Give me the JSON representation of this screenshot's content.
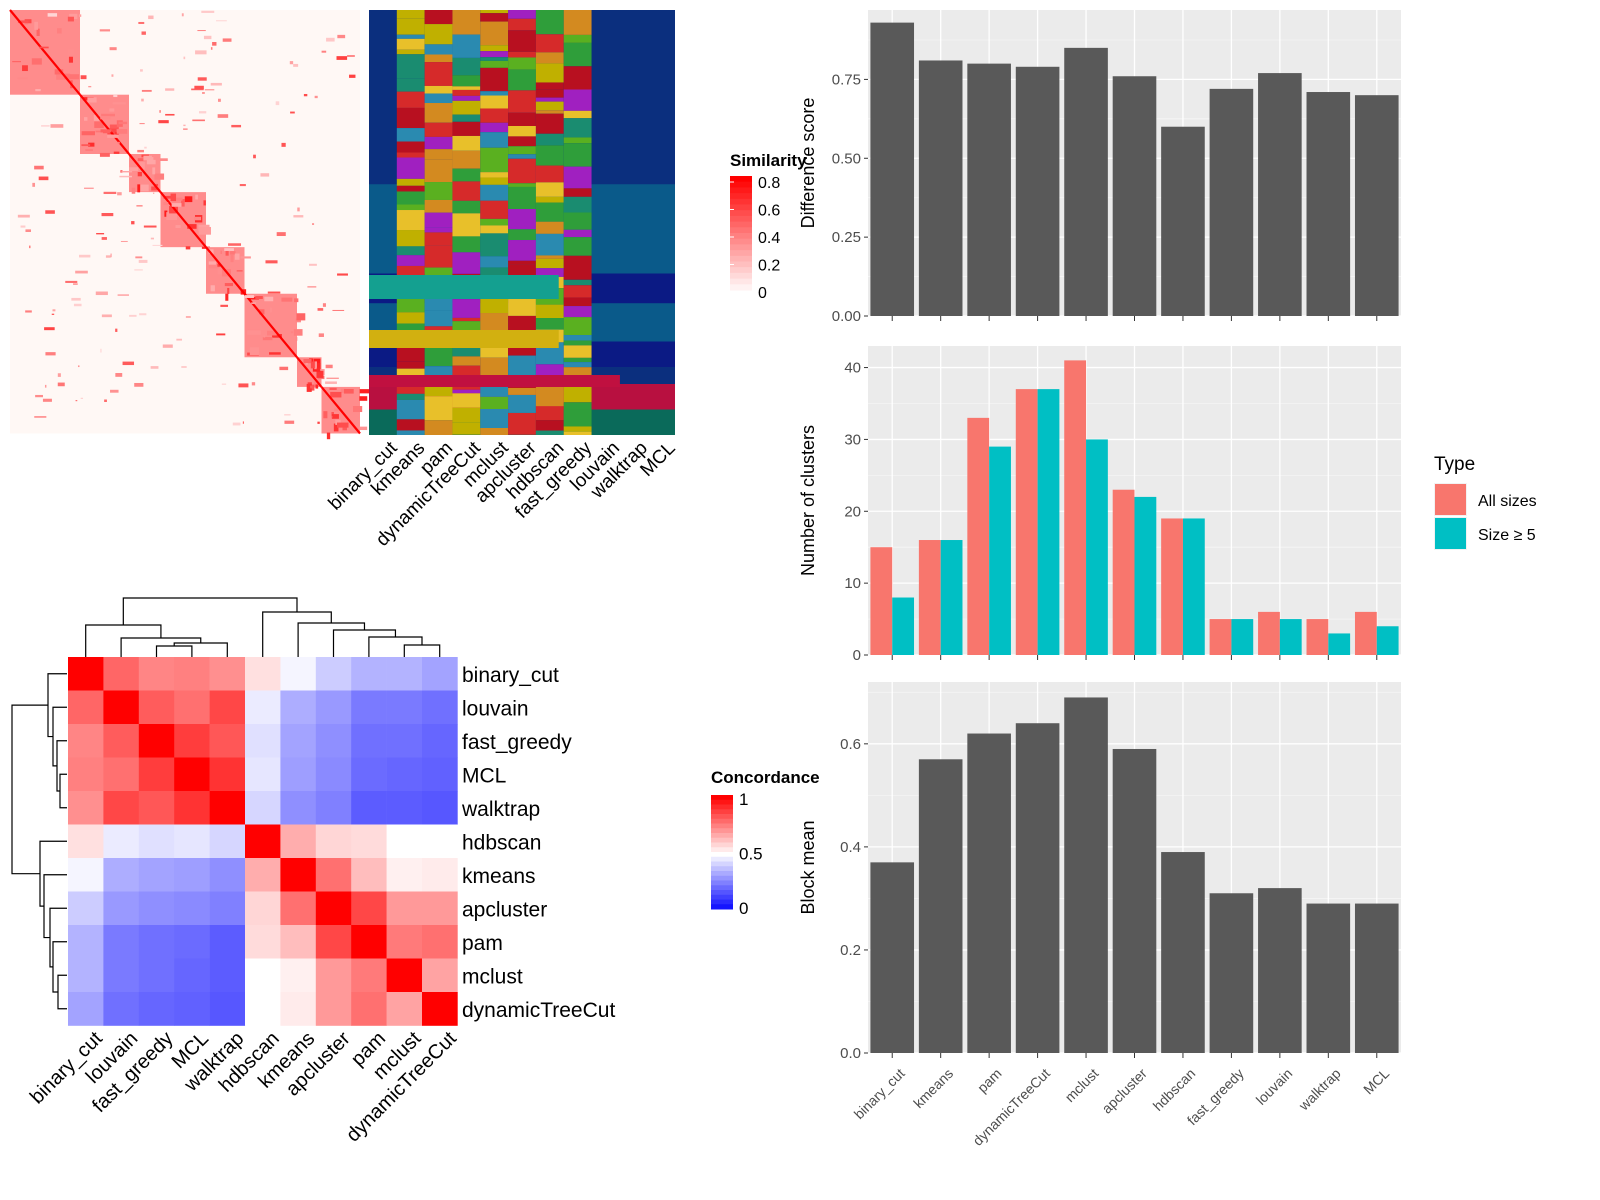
{
  "chart_data": [
    {
      "type": "heatmap",
      "panel": "similarity-heatmap",
      "legend_title": "Similarity",
      "legend_ticks": [
        "0.8",
        "0.6",
        "0.4",
        "0.2",
        "0"
      ],
      "method_columns": [
        "binary_cut",
        "kmeans",
        "pam",
        "dynamicTreeCut",
        "mclust",
        "apcluster",
        "hdbscan",
        "fast_greedy",
        "louvain",
        "walktrap",
        "MCL"
      ],
      "block_proportions": [
        0.2,
        0.14,
        0.09,
        0.13,
        0.11,
        0.15,
        0.07,
        0.11
      ],
      "colors": {
        "high": "#ff0000",
        "low": "#ffffff"
      }
    },
    {
      "type": "heatmap",
      "panel": "concordance-heatmap",
      "legend_title": "Concordance",
      "legend_ticks": [
        "1",
        "0.5",
        "0"
      ],
      "rows": [
        "binary_cut",
        "louvain",
        "fast_greedy",
        "MCL",
        "walktrap",
        "hdbscan",
        "kmeans",
        "apcluster",
        "pam",
        "mclust",
        "dynamicTreeCut"
      ],
      "columns": [
        "binary_cut",
        "louvain",
        "fast_greedy",
        "MCL",
        "walktrap",
        "hdbscan",
        "kmeans",
        "apcluster",
        "pam",
        "mclust",
        "dynamicTreeCut"
      ],
      "values": [
        [
          1.0,
          0.8,
          0.74,
          0.75,
          0.72,
          0.56,
          0.48,
          0.4,
          0.35,
          0.35,
          0.32
        ],
        [
          0.8,
          1.0,
          0.82,
          0.78,
          0.86,
          0.46,
          0.34,
          0.3,
          0.24,
          0.24,
          0.22
        ],
        [
          0.74,
          0.82,
          1.0,
          0.88,
          0.83,
          0.44,
          0.32,
          0.28,
          0.22,
          0.22,
          0.2
        ],
        [
          0.75,
          0.78,
          0.88,
          1.0,
          0.9,
          0.45,
          0.31,
          0.27,
          0.21,
          0.2,
          0.19
        ],
        [
          0.72,
          0.86,
          0.83,
          0.9,
          1.0,
          0.42,
          0.28,
          0.25,
          0.18,
          0.18,
          0.17
        ],
        [
          0.56,
          0.46,
          0.44,
          0.45,
          0.42,
          1.0,
          0.66,
          0.58,
          0.57,
          0.5,
          0.5
        ],
        [
          0.48,
          0.34,
          0.32,
          0.31,
          0.28,
          0.66,
          1.0,
          0.78,
          0.63,
          0.53,
          0.54
        ],
        [
          0.4,
          0.3,
          0.28,
          0.27,
          0.25,
          0.58,
          0.78,
          1.0,
          0.86,
          0.7,
          0.7
        ],
        [
          0.35,
          0.24,
          0.22,
          0.21,
          0.18,
          0.57,
          0.63,
          0.86,
          1.0,
          0.76,
          0.78
        ],
        [
          0.35,
          0.24,
          0.22,
          0.2,
          0.18,
          0.5,
          0.53,
          0.7,
          0.76,
          1.0,
          0.68
        ],
        [
          0.32,
          0.22,
          0.2,
          0.19,
          0.17,
          0.5,
          0.54,
          0.7,
          0.78,
          0.68,
          1.0
        ]
      ],
      "colors": {
        "high": "#ff0000",
        "mid": "#ffffff",
        "low": "#0000ff"
      }
    },
    {
      "type": "bar",
      "panel": "difference-score",
      "categories": [
        "binary_cut",
        "kmeans",
        "pam",
        "dynamicTreeCut",
        "mclust",
        "apcluster",
        "hdbscan",
        "fast_greedy",
        "louvain",
        "walktrap",
        "MCL"
      ],
      "values": [
        0.93,
        0.81,
        0.8,
        0.79,
        0.85,
        0.76,
        0.6,
        0.72,
        0.77,
        0.71,
        0.7
      ],
      "ylabel": "Difference score",
      "ylim": [
        0,
        0.97
      ],
      "yticks": [
        0.0,
        0.25,
        0.5,
        0.75
      ],
      "ytick_labels": [
        "0.00",
        "0.25",
        "0.50",
        "0.75"
      ],
      "color": "#595959"
    },
    {
      "type": "bar",
      "panel": "number-of-clusters",
      "categories": [
        "binary_cut",
        "kmeans",
        "pam",
        "dynamicTreeCut",
        "mclust",
        "apcluster",
        "hdbscan",
        "fast_greedy",
        "louvain",
        "walktrap",
        "MCL"
      ],
      "series": [
        {
          "name": "All sizes",
          "values": [
            15,
            16,
            33,
            37,
            41,
            23,
            19,
            5,
            6,
            5,
            6
          ],
          "color": "#f8766d"
        },
        {
          "name": "Size ≥ 5",
          "values": [
            8,
            16,
            29,
            37,
            30,
            22,
            19,
            5,
            5,
            3,
            4
          ],
          "color": "#00bfc4"
        }
      ],
      "ylabel": "Number of clusters",
      "ylim": [
        0,
        43
      ],
      "yticks": [
        0,
        10,
        20,
        30,
        40
      ],
      "legend_title": "Type",
      "legend_position": "right"
    },
    {
      "type": "bar",
      "panel": "block-mean",
      "categories": [
        "binary_cut",
        "kmeans",
        "pam",
        "dynamicTreeCut",
        "mclust",
        "apcluster",
        "hdbscan",
        "fast_greedy",
        "louvain",
        "walktrap",
        "MCL"
      ],
      "values": [
        0.37,
        0.57,
        0.62,
        0.64,
        0.69,
        0.59,
        0.39,
        0.31,
        0.32,
        0.29,
        0.29
      ],
      "ylabel": "Block mean",
      "ylim": [
        0,
        0.72
      ],
      "yticks": [
        0.0,
        0.2,
        0.4,
        0.6
      ],
      "ytick_labels": [
        "0.0",
        "0.2",
        "0.4",
        "0.6"
      ],
      "color": "#595959"
    }
  ]
}
